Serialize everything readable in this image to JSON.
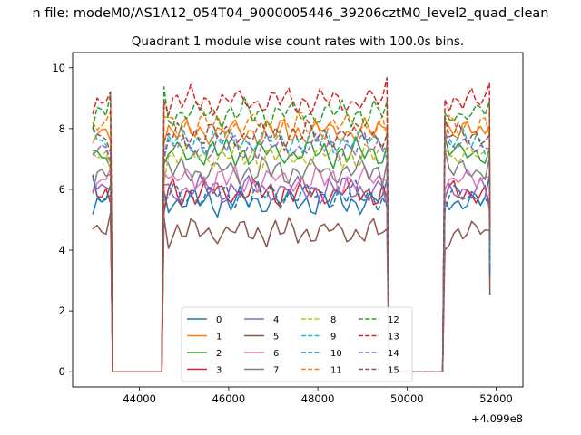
{
  "suptitle": "n file: modeM0/AS1A12_054T04_9000005446_39206cztM0_level2_quad_clean",
  "chart_data": {
    "type": "line",
    "title": "Quadrant 1 module wise count rates with 100.0s bins.",
    "xlabel": "",
    "ylabel": "",
    "x_offset_label": "+4.099e8",
    "xlim": [
      42500,
      52600
    ],
    "ylim": [
      -0.5,
      10.5
    ],
    "x_ticks": [
      44000,
      46000,
      48000,
      50000,
      52000
    ],
    "y_ticks": [
      0,
      2,
      4,
      6,
      8,
      10
    ],
    "grid": false,
    "legend": {
      "placement": "lower center",
      "columns": 4
    },
    "segments": [
      [
        42950,
        43350
      ],
      [
        44550,
        49550
      ],
      [
        50850,
        51850
      ]
    ],
    "bin_seconds": 100,
    "series": [
      {
        "name": "0",
        "color": "#1f77b4",
        "dash": "solid",
        "level": 5.6,
        "phase": 0.3
      },
      {
        "name": "1",
        "color": "#ff7f0e",
        "dash": "solid",
        "level": 7.9,
        "phase": 1.1
      },
      {
        "name": "2",
        "color": "#2ca02c",
        "dash": "solid",
        "level": 7.2,
        "phase": 2.0
      },
      {
        "name": "3",
        "color": "#d62728",
        "dash": "solid",
        "level": 5.9,
        "phase": 2.7
      },
      {
        "name": "4",
        "color": "#9467bd",
        "dash": "solid",
        "level": 6.0,
        "phase": 3.4
      },
      {
        "name": "5",
        "color": "#8c564b",
        "dash": "solid",
        "level": 4.6,
        "phase": 4.2
      },
      {
        "name": "6",
        "color": "#e377c2",
        "dash": "solid",
        "level": 6.3,
        "phase": 5.0
      },
      {
        "name": "7",
        "color": "#7f7f7f",
        "dash": "solid",
        "level": 6.6,
        "phase": 5.6
      },
      {
        "name": "8",
        "color": "#bcbd22",
        "dash": "dashed",
        "level": 7.1,
        "phase": 0.8
      },
      {
        "name": "9",
        "color": "#17becf",
        "dash": "dashed",
        "level": 7.6,
        "phase": 1.6
      },
      {
        "name": "10",
        "color": "#1f77b4",
        "dash": "dashed",
        "level": 5.8,
        "phase": 2.3
      },
      {
        "name": "11",
        "color": "#ff7f0e",
        "dash": "dashed",
        "level": 8.1,
        "phase": 3.0
      },
      {
        "name": "12",
        "color": "#2ca02c",
        "dash": "dashed",
        "level": 8.5,
        "phase": 3.8
      },
      {
        "name": "13",
        "color": "#d62728",
        "dash": "dashed",
        "level": 8.9,
        "phase": 4.5
      },
      {
        "name": "14",
        "color": "#9467bd",
        "dash": "dashed",
        "level": 7.4,
        "phase": 5.2
      },
      {
        "name": "15",
        "color": "#8c564b",
        "dash": "dashed",
        "level": 7.8,
        "phase": 6.0
      }
    ]
  }
}
